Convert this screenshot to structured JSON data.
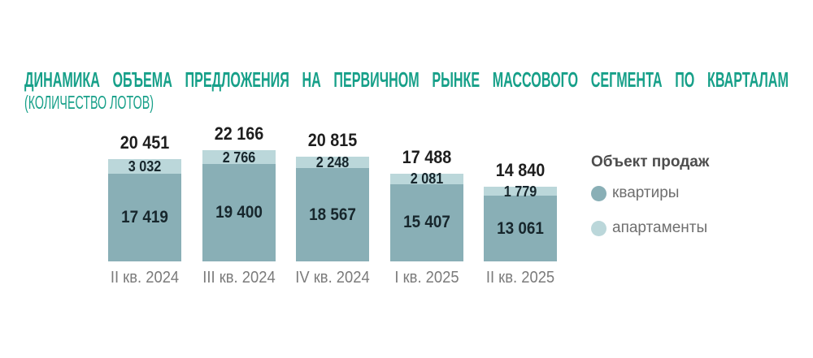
{
  "title": "ДИНАМИКА ОБЪЕМА ПРЕДЛОЖЕНИЯ НА ПЕРВИЧНОМ РЫНКЕ МАССОВОГО СЕГМЕНТА ПО КВАРТАЛАМ",
  "subtitle": "(КОЛИЧЕСТВО ЛОТОВ)",
  "colors": {
    "title": "#17a089",
    "kvartiry": "#89afb6",
    "apartamenty": "#bbd7da",
    "value_text": "#17262c",
    "total_text": "#1e1e1e",
    "category_text": "#7b7b7b",
    "legend_title_text": "#4d4d4d",
    "legend_item_text": "#6f6f6f",
    "background": "#ffffff"
  },
  "legend": {
    "title": "Объект продаж",
    "items": [
      {
        "label": "квартиры",
        "color_key": "kvartiry"
      },
      {
        "label": "апартаменты",
        "color_key": "apartamenty"
      }
    ]
  },
  "chart_data": {
    "type": "bar",
    "stacked": true,
    "title": "ДИНАМИКА ОБЪЕМА ПРЕДЛОЖЕНИЯ НА ПЕРВИЧНОМ РЫНКЕ МАССОВОГО СЕГМЕНТА ПО КВАРТАЛАМ",
    "subtitle": "(КОЛИЧЕСТВО ЛОТОВ)",
    "xlabel": "",
    "ylabel": "количество лотов",
    "grid": false,
    "axes_visible": false,
    "value_labels": true,
    "legend_position": "right",
    "ylim": [
      0,
      22166
    ],
    "categories": [
      "II кв. 2024",
      "III кв. 2024",
      "IV кв. 2024",
      "I кв. 2025",
      "II кв. 2025"
    ],
    "series": [
      {
        "name": "квартиры",
        "values": [
          17419,
          19400,
          18567,
          15407,
          13061
        ],
        "labels": [
          "17 419",
          "19 400",
          "18 567",
          "15 407",
          "13 061"
        ]
      },
      {
        "name": "апартаменты",
        "values": [
          3032,
          2766,
          2248,
          2081,
          1779
        ],
        "labels": [
          "3 032",
          "2 766",
          "2 248",
          "2 081",
          "1 779"
        ]
      }
    ],
    "totals": [
      20451,
      22166,
      20815,
      17488,
      14840
    ],
    "total_labels": [
      "20 451",
      "22 166",
      "20 815",
      "17 488",
      "14 840"
    ]
  }
}
